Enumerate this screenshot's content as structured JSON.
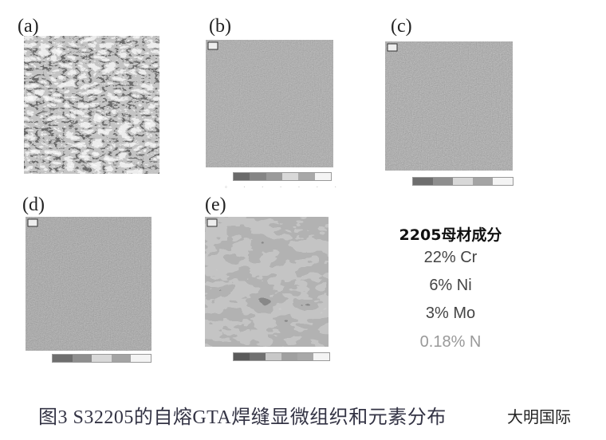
{
  "panels": [
    {
      "label": "(a)",
      "texture": "optical-micrograph"
    },
    {
      "label": "(b)",
      "texture": "element-map",
      "colorbar": [
        "#6a6a6a",
        "#858585",
        "#9a9a9a",
        "#d8d8d8",
        "#a8a8a8",
        "#f4f4f4"
      ]
    },
    {
      "label": "(c)",
      "texture": "element-map",
      "colorbar": [
        "#6e6e6e",
        "#8e8e8e",
        "#d8d8d8",
        "#a4a4a4",
        "#f4f4f4"
      ]
    },
    {
      "label": "(d)",
      "texture": "element-map",
      "colorbar": [
        "#6e6e6e",
        "#8e8e8e",
        "#d8d8d8",
        "#a4a4a4",
        "#f4f4f4"
      ]
    },
    {
      "label": "(e)",
      "texture": "element-map-two-phase",
      "colorbar": [
        "#5a5a5a",
        "#707070",
        "#c8c8c8",
        "#a0a0a0",
        "#a8a8a8",
        "#f4f4f4"
      ]
    }
  ],
  "composition": {
    "heading": "2205母材成分",
    "lines": [
      "22% Cr",
      "6% Ni",
      "3% Mo",
      "0.18% N"
    ]
  },
  "caption": "图3   S32205的自熔GTA焊缝显微组织和元素分布",
  "watermark": "大明国际"
}
